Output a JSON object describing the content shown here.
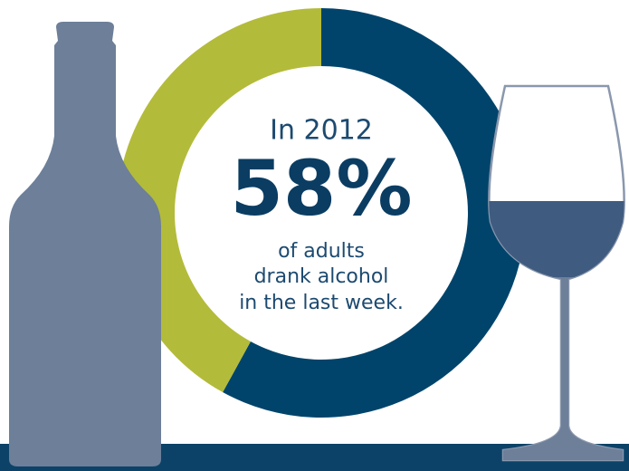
{
  "chart_data": {
    "type": "pie",
    "categories": [
      null,
      null
    ],
    "values": [
      58,
      42
    ],
    "value_labels": [
      "58%",
      null
    ],
    "colors": [
      "#00446b",
      "#b3bb3a"
    ],
    "annotations": [
      "In 2012",
      "of adults",
      "drank alcohol",
      "in the last week."
    ]
  }
}
